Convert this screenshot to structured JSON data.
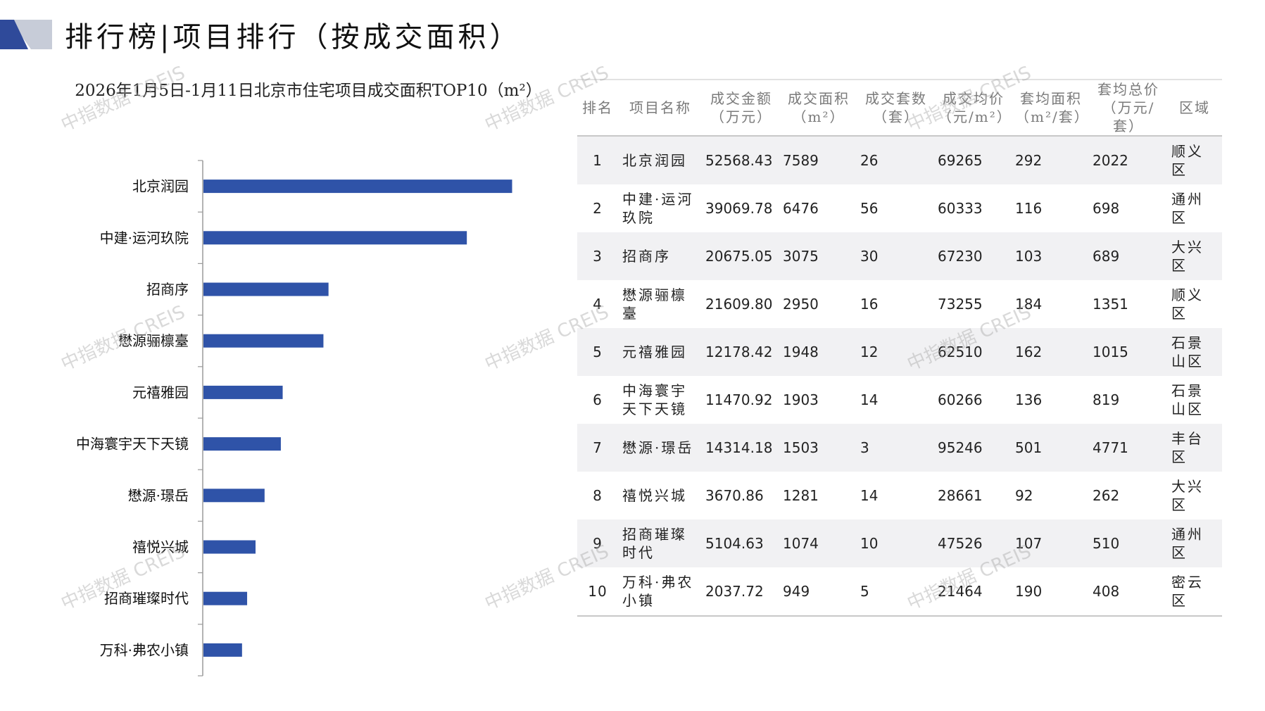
{
  "header": {
    "title": "排行榜|项目排行（按成交面积）"
  },
  "colors": {
    "bar": "#2f53a8",
    "logo_dark": "#2f4a9a",
    "logo_light": "#c7ccd8",
    "axis": "#9a9a9a"
  },
  "chart_data": {
    "type": "bar",
    "orientation": "horizontal",
    "title": "2026年1月5日-1月11日北京市住宅项目成交面积TOP10（m²）",
    "categories": [
      "北京润园",
      "中建·运河玖院",
      "招商序",
      "懋源骊檩臺",
      "元禧雅园",
      "中海寰宇天下天镜",
      "懋源·璟岳",
      "禧悦兴城",
      "招商璀璨时代",
      "万科·弗农小镇"
    ],
    "values": [
      7589,
      6476,
      3075,
      2950,
      1948,
      1903,
      1503,
      1281,
      1074,
      949
    ],
    "xlim": [
      0,
      9000
    ],
    "grid": false,
    "legend": "none"
  },
  "table": {
    "headers": [
      {
        "line1": "排名",
        "line2": ""
      },
      {
        "line1": "项目名称",
        "line2": ""
      },
      {
        "line1": "成交金额",
        "line2": "（万元）"
      },
      {
        "line1": "成交面积",
        "line2": "（m²）"
      },
      {
        "line1": "成交套数",
        "line2": "（套）"
      },
      {
        "line1": "成交均价",
        "line2": "（元/m²）"
      },
      {
        "line1": "套均面积",
        "line2": "（m²/套）"
      },
      {
        "line1": "套均总价",
        "line2": "（万元/套）"
      },
      {
        "line1": "区域",
        "line2": ""
      }
    ],
    "rows": [
      {
        "rank": "1",
        "name": "北京润园",
        "amount": "52568.43",
        "area": "7589",
        "units": "26",
        "avg_price": "69265",
        "avg_area": "292",
        "avg_total": "2022",
        "district": "顺义区"
      },
      {
        "rank": "2",
        "name": "中建·运河玖院",
        "amount": "39069.78",
        "area": "6476",
        "units": "56",
        "avg_price": "60333",
        "avg_area": "116",
        "avg_total": "698",
        "district": "通州区"
      },
      {
        "rank": "3",
        "name": "招商序",
        "amount": "20675.05",
        "area": "3075",
        "units": "30",
        "avg_price": "67230",
        "avg_area": "103",
        "avg_total": "689",
        "district": "大兴区"
      },
      {
        "rank": "4",
        "name": "懋源骊檩臺",
        "amount": "21609.80",
        "area": "2950",
        "units": "16",
        "avg_price": "73255",
        "avg_area": "184",
        "avg_total": "1351",
        "district": "顺义区"
      },
      {
        "rank": "5",
        "name": "元禧雅园",
        "amount": "12178.42",
        "area": "1948",
        "units": "12",
        "avg_price": "62510",
        "avg_area": "162",
        "avg_total": "1015",
        "district": "石景山区"
      },
      {
        "rank": "6",
        "name": "中海寰宇天下天镜",
        "amount": "11470.92",
        "area": "1903",
        "units": "14",
        "avg_price": "60266",
        "avg_area": "136",
        "avg_total": "819",
        "district": "石景山区"
      },
      {
        "rank": "7",
        "name": "懋源·璟岳",
        "amount": "14314.18",
        "area": "1503",
        "units": "3",
        "avg_price": "95246",
        "avg_area": "501",
        "avg_total": "4771",
        "district": "丰台区"
      },
      {
        "rank": "8",
        "name": "禧悦兴城",
        "amount": "3670.86",
        "area": "1281",
        "units": "14",
        "avg_price": "28661",
        "avg_area": "92",
        "avg_total": "262",
        "district": "大兴区"
      },
      {
        "rank": "9",
        "name": "招商璀璨时代",
        "amount": "5104.63",
        "area": "1074",
        "units": "10",
        "avg_price": "47526",
        "avg_area": "107",
        "avg_total": "510",
        "district": "通州区"
      },
      {
        "rank": "10",
        "name": "万科·弗农小镇",
        "amount": "2037.72",
        "area": "949",
        "units": "5",
        "avg_price": "21464",
        "avg_area": "190",
        "avg_total": "408",
        "district": "密云区"
      }
    ]
  },
  "watermark": {
    "text": "中指数据 CREIS"
  }
}
